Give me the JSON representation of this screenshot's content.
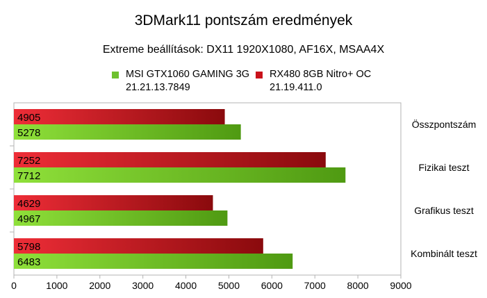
{
  "chart_data": {
    "type": "bar",
    "orientation": "horizontal",
    "title": "3DMark11 pontszám eredmények",
    "subtitle": "Extreme beállítások: DX11 1920X1080, AF16X, MSAA4X",
    "categories": [
      "Összpontszám",
      "Fizikai teszt",
      "Grafikus teszt",
      "Kombinált teszt"
    ],
    "series": [
      {
        "name": "MSI GTX1060 GAMING 3G",
        "name_line2": "21.21.13.7849",
        "color": "#6ec12e",
        "values": [
          5278,
          7712,
          4967,
          6483
        ]
      },
      {
        "name": "RX480 8GB Nitro+ OC",
        "name_line2": "21.19.411.0",
        "color": "#c9111b",
        "values": [
          4905,
          7252,
          4629,
          5798
        ]
      }
    ],
    "x_ticks": [
      0,
      1000,
      2000,
      3000,
      4000,
      5000,
      6000,
      7000,
      8000,
      9000
    ],
    "xlim": [
      0,
      9000
    ],
    "grid": false,
    "legend_position": "top",
    "category_label_position": "right"
  }
}
